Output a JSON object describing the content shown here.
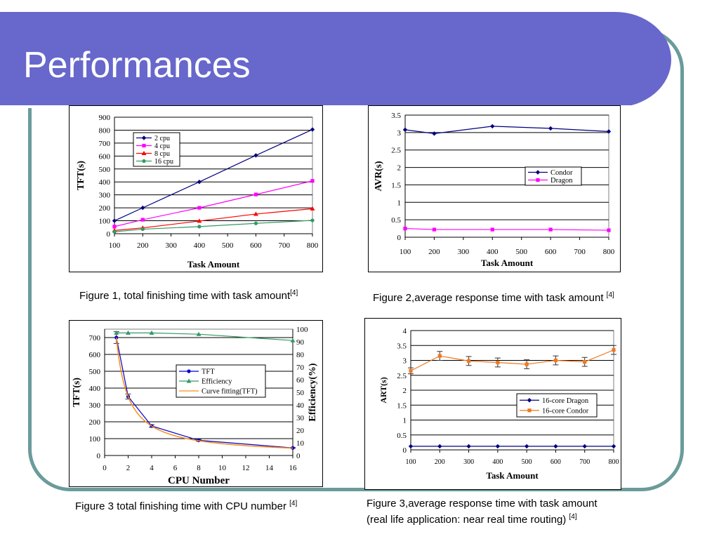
{
  "slide": {
    "title": "Performances",
    "header_color": "#6767cc",
    "frame_color": "#6b9b9b"
  },
  "captions": [
    {
      "text": "Figure 1, total finishing time with task amount",
      "ref": "[4]"
    },
    {
      "text": "Figure 2,average response time with task amount ",
      "ref": "[4]"
    },
    {
      "text": "Figure 3 total finishing time with CPU number ",
      "ref": "[4]"
    },
    {
      "text": "Figure 3,average response time with task amount",
      "text2": "(real life application: near real time routing) ",
      "ref": "[4]"
    }
  ],
  "chart_data": [
    {
      "type": "line",
      "title": "",
      "xlabel": "Task Amount",
      "ylabel": "TFT(s)",
      "xlim": [
        100,
        800
      ],
      "ylim": [
        0,
        900
      ],
      "xticks": [
        100,
        200,
        300,
        400,
        500,
        600,
        700,
        800
      ],
      "yticks": [
        0,
        100,
        200,
        300,
        400,
        500,
        600,
        700,
        800,
        900
      ],
      "grid": true,
      "legend_position": "top-left",
      "series": [
        {
          "name": "2 cpu",
          "color": "#000080",
          "marker": "diamond",
          "x": [
            100,
            200,
            400,
            600,
            800
          ],
          "y": [
            100,
            200,
            400,
            605,
            805
          ]
        },
        {
          "name": "4 cpu",
          "color": "#ff00ff",
          "marker": "square",
          "x": [
            100,
            200,
            400,
            600,
            800
          ],
          "y": [
            55,
            108,
            200,
            303,
            408
          ]
        },
        {
          "name": "8 cpu",
          "color": "#ff0000",
          "marker": "triangle",
          "x": [
            100,
            200,
            400,
            600,
            800
          ],
          "y": [
            25,
            45,
            98,
            152,
            193
          ]
        },
        {
          "name": "16 cpu",
          "color": "#339966",
          "marker": "circle",
          "x": [
            100,
            200,
            400,
            600,
            800
          ],
          "y": [
            15,
            35,
            55,
            80,
            103
          ]
        }
      ]
    },
    {
      "type": "line",
      "title": "",
      "xlabel": "Task Amount",
      "ylabel": "AVR(s)",
      "xlim": [
        100,
        800
      ],
      "ylim": [
        0,
        3.5
      ],
      "xticks": [
        100,
        200,
        300,
        400,
        500,
        600,
        700,
        800
      ],
      "yticks": [
        0,
        0.5,
        1,
        1.5,
        2,
        2.5,
        3,
        3.5
      ],
      "grid": true,
      "legend_position": "right",
      "series": [
        {
          "name": "Condor",
          "color": "#000080",
          "marker": "diamond",
          "x": [
            100,
            200,
            400,
            600,
            800
          ],
          "y": [
            3.08,
            2.97,
            3.18,
            3.12,
            3.03
          ]
        },
        {
          "name": "Dragon",
          "color": "#ff00ff",
          "marker": "square",
          "x": [
            100,
            200,
            400,
            600,
            800
          ],
          "y": [
            0.25,
            0.22,
            0.22,
            0.22,
            0.2
          ]
        }
      ]
    },
    {
      "type": "line",
      "title": "",
      "xlabel": "CPU Number",
      "ylabel": "TFT(s)",
      "y2label": "Efficiency(%)",
      "xlim": [
        0,
        16
      ],
      "ylim": [
        0,
        750
      ],
      "y2lim": [
        0,
        100
      ],
      "xticks": [
        0,
        2,
        4,
        6,
        8,
        10,
        12,
        14,
        16
      ],
      "yticks": [
        0,
        100,
        200,
        300,
        400,
        500,
        600,
        700
      ],
      "y2ticks": [
        0,
        10,
        20,
        30,
        40,
        50,
        60,
        70,
        80,
        90,
        100
      ],
      "grid": true,
      "legend_position": "center-right",
      "series": [
        {
          "name": "TFT",
          "color": "#0000cc",
          "marker": "circle",
          "axis": "left",
          "x": [
            1,
            2,
            4,
            8,
            16
          ],
          "y": [
            700,
            350,
            175,
            90,
            45
          ],
          "error": [
            35,
            15,
            8,
            5,
            3
          ]
        },
        {
          "name": "Efficiency",
          "color": "#339966",
          "marker": "triangle",
          "axis": "right",
          "x": [
            1,
            2,
            4,
            8,
            16
          ],
          "y": [
            97,
            97,
            97,
            96,
            91
          ]
        },
        {
          "name": "Curve fitting(TFT)",
          "color": "#ff8c1a",
          "marker": "none",
          "axis": "left",
          "fit": "700/x"
        }
      ]
    },
    {
      "type": "line",
      "title": "",
      "xlabel": "Task Amount",
      "ylabel": "ART(s)",
      "xlim": [
        100,
        800
      ],
      "ylim": [
        0,
        4
      ],
      "xticks": [
        100,
        200,
        300,
        400,
        500,
        600,
        700,
        800
      ],
      "yticks": [
        0,
        0.5,
        1,
        1.5,
        2,
        2.5,
        3,
        3.5,
        4
      ],
      "grid": true,
      "legend_position": "right",
      "series": [
        {
          "name": "16-core Dragon",
          "color": "#000080",
          "marker": "diamond",
          "x": [
            100,
            200,
            300,
            400,
            500,
            600,
            700,
            800
          ],
          "y": [
            0.12,
            0.12,
            0.12,
            0.12,
            0.12,
            0.12,
            0.12,
            0.12
          ]
        },
        {
          "name": "16-core Condor",
          "color": "#f07820",
          "marker": "square",
          "x": [
            100,
            200,
            300,
            400,
            500,
            600,
            700,
            800
          ],
          "y": [
            2.65,
            3.15,
            2.98,
            2.93,
            2.87,
            3.0,
            2.95,
            3.35
          ],
          "error": [
            0.1,
            0.15,
            0.15,
            0.15,
            0.15,
            0.15,
            0.15,
            0.15
          ]
        }
      ]
    }
  ]
}
